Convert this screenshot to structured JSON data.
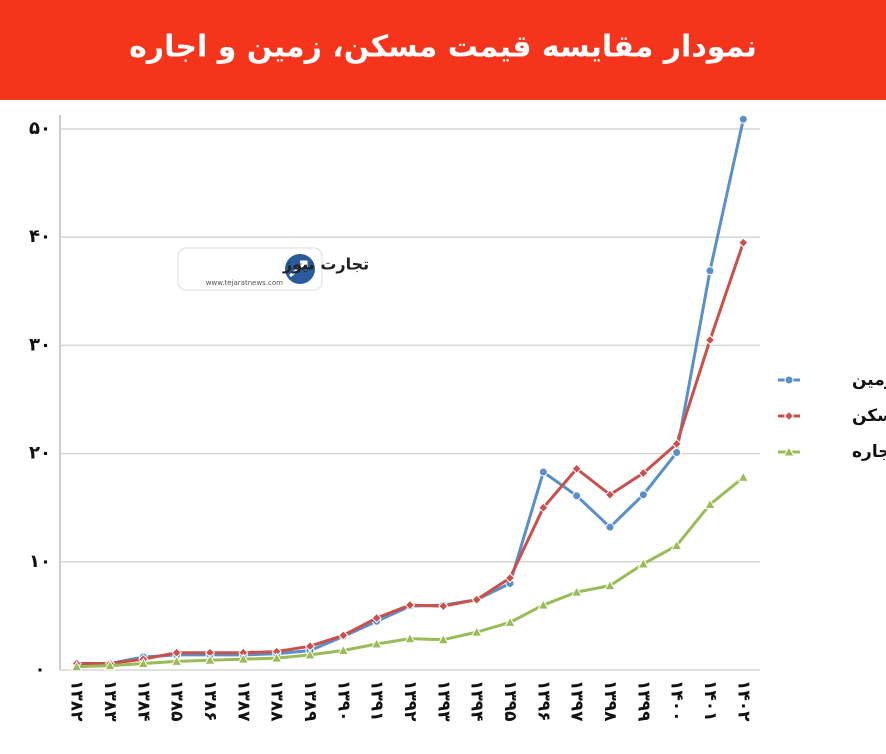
{
  "chart_data": {
    "type": "line",
    "title": "نمودار مقایسه قیمت مسکن، زمین و اجاره",
    "logo": {
      "name": "تجارت نیوز",
      "url": "www.tejaratnews.com"
    },
    "categories": [
      "۱۳۸۲",
      "۱۳۸۳",
      "۱۳۸۴",
      "۱۳۸۵",
      "۱۳۸۶",
      "۱۳۸۷",
      "۱۳۸۸",
      "۱۳۸۹",
      "۱۳۹۰",
      "۱۳۹۱",
      "۱۳۹۲",
      "۱۳۹۳",
      "۱۳۹۴",
      "۱۳۹۵",
      "۱۳۹۶",
      "۱۳۹۷",
      "۱۳۹۸",
      "۱۳۹۹",
      "۱۴۰۰",
      "۱۴۰۱",
      "۱۴۰۲"
    ],
    "series": [
      {
        "name": "زمین",
        "color": "#5b8fc9",
        "marker": "circle",
        "values": [
          0.5,
          0.6,
          1.2,
          1.4,
          1.4,
          1.4,
          1.5,
          1.8,
          3.1,
          4.5,
          5.9,
          6.0,
          6.5,
          8.0,
          18.3,
          16.1,
          13.2,
          16.2,
          20.1,
          36.9,
          50.9
        ]
      },
      {
        "name": "مسکن",
        "color": "#c9504c",
        "marker": "diamond",
        "values": [
          0.6,
          0.6,
          1.0,
          1.6,
          1.6,
          1.6,
          1.7,
          2.2,
          3.2,
          4.8,
          6.0,
          5.9,
          6.5,
          8.5,
          15.0,
          18.6,
          16.2,
          18.2,
          20.9,
          30.5,
          39.5
        ]
      },
      {
        "name": "اجاره",
        "color": "#9bbb59",
        "marker": "triangle",
        "values": [
          0.3,
          0.4,
          0.6,
          0.8,
          0.9,
          1.0,
          1.1,
          1.4,
          1.8,
          2.4,
          2.9,
          2.8,
          3.5,
          4.4,
          6.0,
          7.2,
          7.8,
          9.8,
          11.5,
          15.3,
          17.8
        ]
      }
    ],
    "ylim": [
      0,
      50
    ],
    "yticks": [
      {
        "value": 0,
        "label": "۰"
      },
      {
        "value": 10,
        "label": "۱۰"
      },
      {
        "value": 20,
        "label": "۲۰"
      },
      {
        "value": 30,
        "label": "۳۰"
      },
      {
        "value": 40,
        "label": "۴۰"
      },
      {
        "value": 50,
        "label": "۵۰"
      }
    ],
    "grid": true,
    "legend": "right"
  }
}
